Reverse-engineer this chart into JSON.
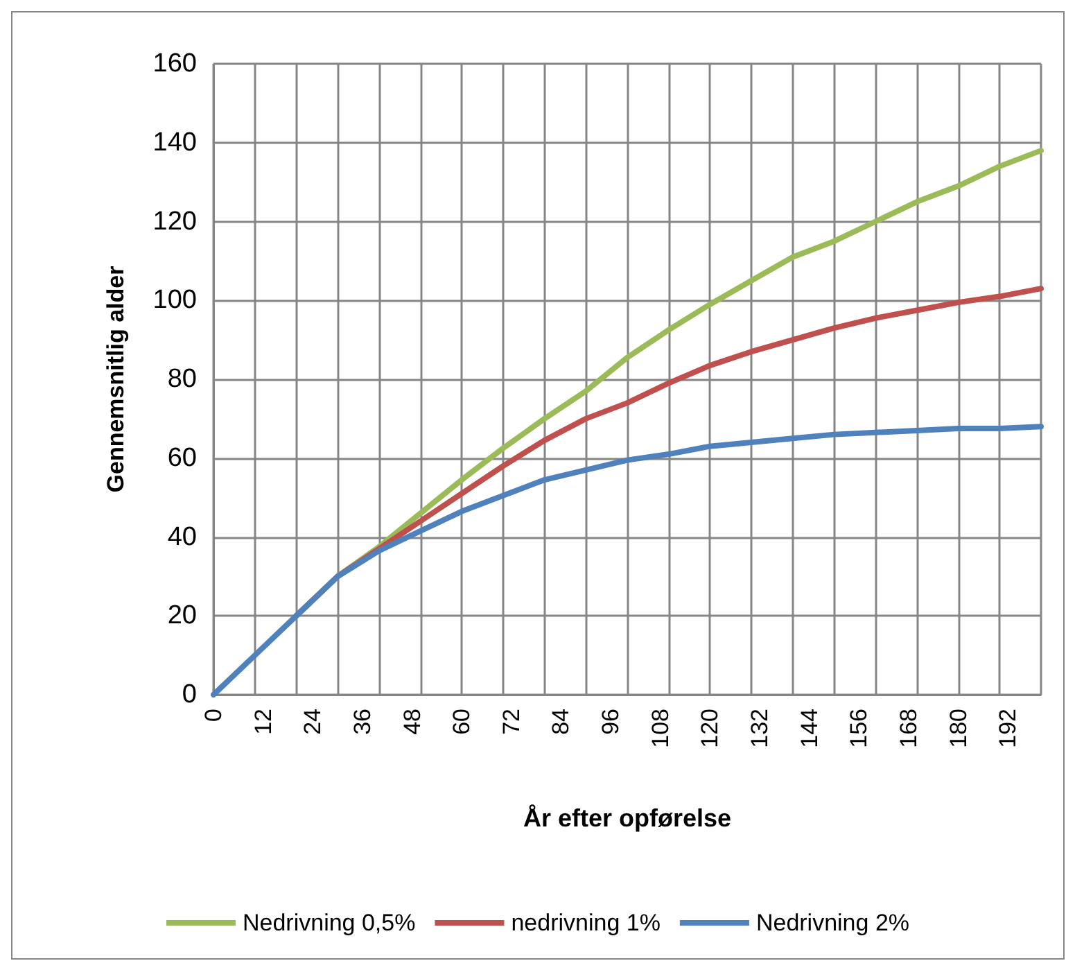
{
  "chart_data": {
    "type": "line",
    "xlabel": "År efter opførelse",
    "ylabel": "Gennemsnitlig alder",
    "x": [
      0,
      10,
      20,
      30,
      40,
      50,
      60,
      70,
      80,
      90,
      100,
      110,
      120,
      130,
      140,
      150,
      160,
      170,
      180,
      190,
      200
    ],
    "series": [
      {
        "name": "Nedrivning 0,5%",
        "color": "#9bbb59",
        "values": [
          null,
          null,
          20,
          30,
          37.5,
          46,
          54.5,
          62.5,
          70,
          77,
          85.5,
          92.5,
          99,
          105,
          111,
          115,
          120,
          125,
          129,
          134,
          138
        ]
      },
      {
        "name": "nedrivning 1%",
        "color": "#c0504d",
        "values": [
          null,
          null,
          20,
          30,
          37,
          44,
          51,
          58,
          64.5,
          70,
          74,
          79,
          83.5,
          87,
          90,
          93,
          95.5,
          97.5,
          99.5,
          101,
          103
        ]
      },
      {
        "name": "Nedrivning 2%",
        "color": "#4f81bd",
        "values": [
          0,
          10,
          20,
          30,
          36.5,
          41.5,
          46.5,
          50.5,
          54.5,
          57,
          59.5,
          61,
          63,
          64,
          65,
          66,
          66.5,
          67,
          67.5,
          67.5,
          68
        ]
      }
    ],
    "xlim": [
      0,
      200
    ],
    "xticks": [
      0,
      {
        "value": 10,
        "label": null
      },
      12,
      {
        "value": 20,
        "label": null
      },
      24,
      {
        "value": 30,
        "label": null
      },
      36,
      {
        "value": 40,
        "label": null
      },
      48,
      {
        "value": 50,
        "label": null
      },
      60,
      72,
      {
        "value": 70,
        "label": null
      },
      {
        "value": 80,
        "label": null
      },
      84,
      {
        "value": 90,
        "label": null
      },
      96,
      {
        "value": 100,
        "label": null
      },
      108,
      {
        "value": 110,
        "label": null
      },
      120,
      {
        "value": 130,
        "label": null
      },
      132,
      {
        "value": 140,
        "label": null
      },
      144,
      {
        "value": 150,
        "label": null
      },
      156,
      {
        "value": 160,
        "label": null
      },
      168,
      {
        "value": 170,
        "label": null
      },
      180,
      {
        "value": 190,
        "label": null
      },
      192,
      {
        "value": 200,
        "label": null
      }
    ],
    "ylim": [
      0,
      160
    ],
    "yticks": [
      0,
      20,
      40,
      60,
      80,
      100,
      120,
      140,
      160
    ],
    "grid": true,
    "legend": "bottom",
    "marker": "none",
    "line_style": "solid"
  }
}
